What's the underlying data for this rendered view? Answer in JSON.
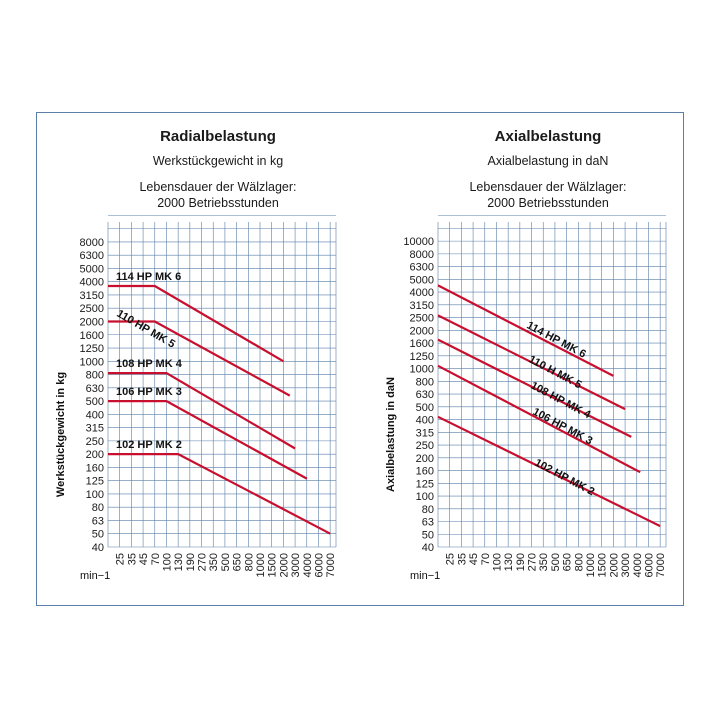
{
  "chart_data": [
    {
      "type": "line",
      "title": "Radialbelastung",
      "subtitle": "Werkstückgewicht in kg",
      "note_line1": "Lebensdauer der Wälzlager:",
      "note_line2": "2000 Betriebsstunden",
      "ylabel": "Werkstückgewicht in kg",
      "xunit": "min−1",
      "x_ticks": [
        "25",
        "35",
        "45",
        "70",
        "100",
        "130",
        "190",
        "270",
        "350",
        "500",
        "650",
        "800",
        "1000",
        "1500",
        "2000",
        "3000",
        "4000",
        "6000",
        "7000"
      ],
      "y_ticks": [
        "40",
        "50",
        "63",
        "80",
        "100",
        "125",
        "160",
        "200",
        "250",
        "315",
        "400",
        "500",
        "630",
        "800",
        "1000",
        "1250",
        "1600",
        "2000",
        "2500",
        "3150",
        "4000",
        "5000",
        "6300",
        "8000"
      ],
      "series": [
        {
          "name": "114 HP MK 6",
          "x": [
            20,
            70,
            2000
          ],
          "y": [
            3700,
            3700,
            1000
          ]
        },
        {
          "name": "110 HP  MK 5",
          "x": [
            20,
            70,
            2500
          ],
          "y": [
            2000,
            2000,
            550
          ]
        },
        {
          "name": "108 HP MK 4",
          "x": [
            20,
            100,
            3000
          ],
          "y": [
            820,
            820,
            220
          ]
        },
        {
          "name": "106 HP MK 3",
          "x": [
            20,
            100,
            4000
          ],
          "y": [
            500,
            500,
            130
          ]
        },
        {
          "name": "102 HP MK 2",
          "x": [
            20,
            130,
            7000
          ],
          "y": [
            200,
            200,
            50
          ]
        }
      ]
    },
    {
      "type": "line",
      "title": "Axialbelastung",
      "subtitle": "Axialbelastung in daN",
      "note_line1": "Lebensdauer der Wälzlager:",
      "note_line2": "2000 Betriebsstunden",
      "ylabel": "Axialbelastung in daN",
      "xunit": "min−1",
      "x_ticks": [
        "25",
        "35",
        "45",
        "70",
        "100",
        "130",
        "190",
        "270",
        "350",
        "500",
        "650",
        "800",
        "1000",
        "1500",
        "2000",
        "3000",
        "4000",
        "6000",
        "7000"
      ],
      "y_ticks": [
        "40",
        "50",
        "63",
        "80",
        "100",
        "125",
        "160",
        "200",
        "250",
        "315",
        "400",
        "500",
        "630",
        "800",
        "1000",
        "1250",
        "1600",
        "2000",
        "2500",
        "3150",
        "4000",
        "5000",
        "6300",
        "8000",
        "10000"
      ],
      "series": [
        {
          "name": "114 HP MK 6",
          "x": [
            20,
            2000
          ],
          "y": [
            4500,
            880
          ]
        },
        {
          "name": "110 H MK 5",
          "x": [
            20,
            3000
          ],
          "y": [
            2600,
            480
          ]
        },
        {
          "name": "108 HP MK 4",
          "x": [
            20,
            3500
          ],
          "y": [
            1700,
            290
          ]
        },
        {
          "name": "106 HP MK 3",
          "x": [
            20,
            4500
          ],
          "y": [
            1050,
            155
          ]
        },
        {
          "name": "102 HP MK 2",
          "x": [
            20,
            7000
          ],
          "y": [
            420,
            58
          ]
        }
      ]
    }
  ],
  "colors": {
    "line": "#c8102e",
    "grid": "#5b7fa8",
    "frame": "#5b7fa8"
  }
}
